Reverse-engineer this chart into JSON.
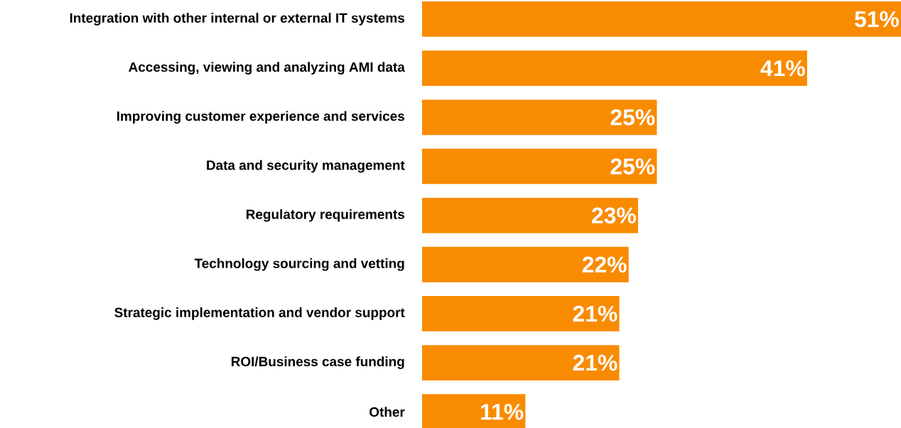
{
  "chart_data": {
    "type": "bar",
    "orientation": "horizontal",
    "color": "#f98b00",
    "categories": [
      "Integration with other internal or external IT systems",
      "Accessing, viewing and analyzing AMI data",
      "Improving customer experience and services",
      "Data and security management",
      "Regulatory requirements",
      "Technology sourcing and vetting",
      "Strategic implementation and vendor support",
      "ROI/Business case funding",
      "Other"
    ],
    "values": [
      51,
      41,
      25,
      25,
      23,
      22,
      21,
      21,
      11
    ],
    "value_labels": [
      "51%",
      "41%",
      "25%",
      "25%",
      "23%",
      "22%",
      "21%",
      "21%",
      "11%"
    ]
  }
}
